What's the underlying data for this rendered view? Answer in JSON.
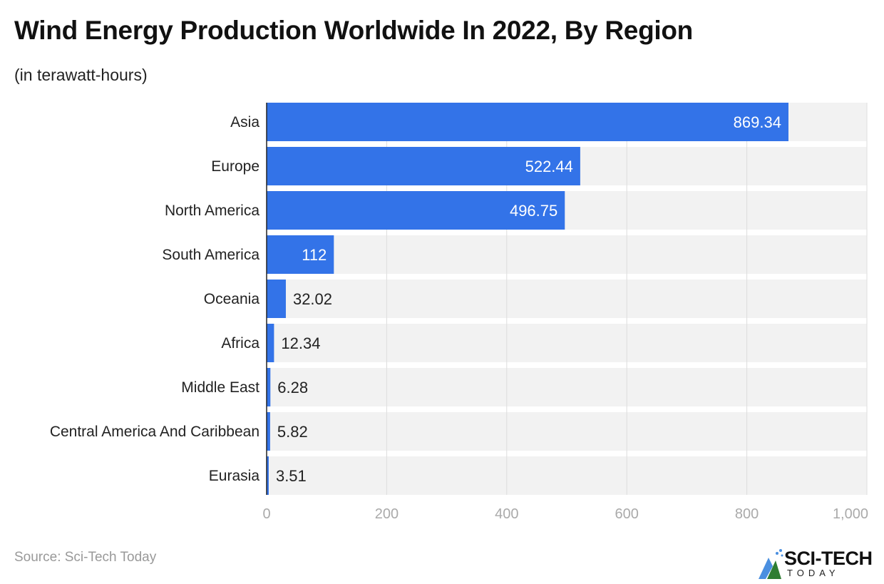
{
  "chart_data": {
    "type": "bar",
    "orientation": "horizontal",
    "title": "Wind Energy Production Worldwide In 2022, By Region",
    "subtitle": "(in terawatt-hours)",
    "categories": [
      "Asia",
      "Europe",
      "North America",
      "South America",
      "Oceania",
      "Africa",
      "Middle East",
      "Central America And Caribbean",
      "Eurasia"
    ],
    "values": [
      869.34,
      522.44,
      496.75,
      112,
      32.02,
      12.34,
      6.28,
      5.82,
      3.51
    ],
    "value_labels": [
      "869.34",
      "522.44",
      "496.75",
      "112",
      "32.02",
      "12.34",
      "6.28",
      "5.82",
      "3.51"
    ],
    "xlim": [
      0,
      1000
    ],
    "x_ticks": [
      0,
      200,
      400,
      600,
      800,
      1000
    ],
    "x_tick_labels": [
      "0",
      "200",
      "400",
      "600",
      "800",
      "1,000"
    ],
    "grid": true,
    "legend": "none",
    "colors": {
      "bar": "#3373e8",
      "track": "#f2f2f2",
      "grid": "#dddddd"
    }
  },
  "source": "Source: Sci-Tech Today",
  "logo": {
    "text": "SCI-TECH",
    "sub": "TODAY"
  }
}
